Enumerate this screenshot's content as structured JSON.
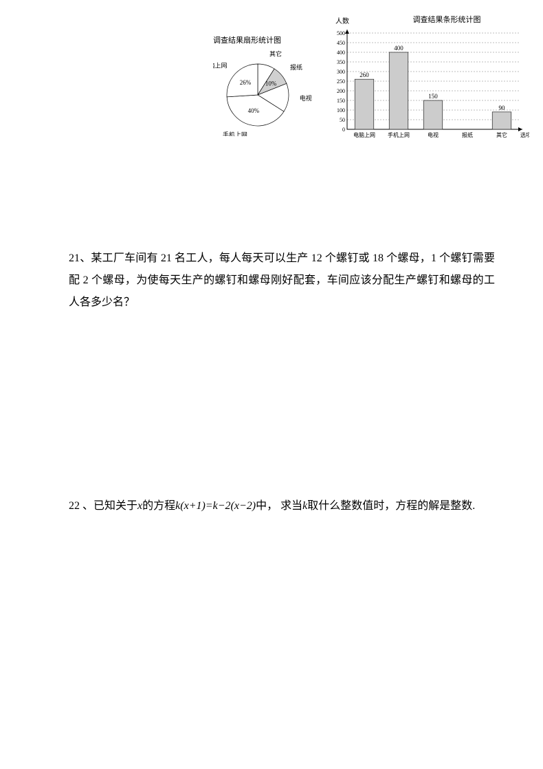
{
  "pie": {
    "title": "调查结果扇形统计图",
    "slices": [
      {
        "label": "其它",
        "pct": 9,
        "color": "#ffffff"
      },
      {
        "label": "报纸",
        "percent_text": "10%",
        "pct": 10,
        "color": "#d0d0d0"
      },
      {
        "label": "电视",
        "pct": 15,
        "color": "#ffffff"
      },
      {
        "label": "手机上网",
        "percent_text": "40%",
        "pct": 40,
        "color": "#ffffff"
      },
      {
        "label": "电脑上网",
        "percent_text": "26%",
        "pct": 26,
        "color": "#ffffff"
      }
    ]
  },
  "bar": {
    "ylabel": "人数",
    "title": "调查结果条形统计图",
    "xlabel": "选项",
    "ymax": 500,
    "ytick_step": 50,
    "categories": [
      "电脑上网",
      "手机上网",
      "电视",
      "报纸",
      "其它"
    ],
    "values": [
      260,
      400,
      150,
      null,
      90
    ],
    "value_labels": [
      "260",
      "400",
      "150",
      "",
      "90"
    ],
    "bar_fill": "#cccccc",
    "bar_stroke": "#222222",
    "grid_color": "#555555",
    "axis_color": "#000000"
  },
  "q21": {
    "number": "21、",
    "text": "某工厂车间有 21 名工人，每人每天可以生产 12 个螺钉或 18 个螺母，1 个螺钉需要配 2 个螺母，为使每天生产的螺钉和螺母刚好配套，车间应该分配生产螺钉和螺母的工人各多少名？"
  },
  "q22": {
    "number": "22 、",
    "prefix": "已知关于",
    "var1": "x",
    "mid1": "的方程",
    "equation": "k(x+1)=k−2(x−2)",
    "mid2": "中， 求当",
    "var2": "k",
    "suffix": "取什么整数值时，方程的解是整数."
  }
}
